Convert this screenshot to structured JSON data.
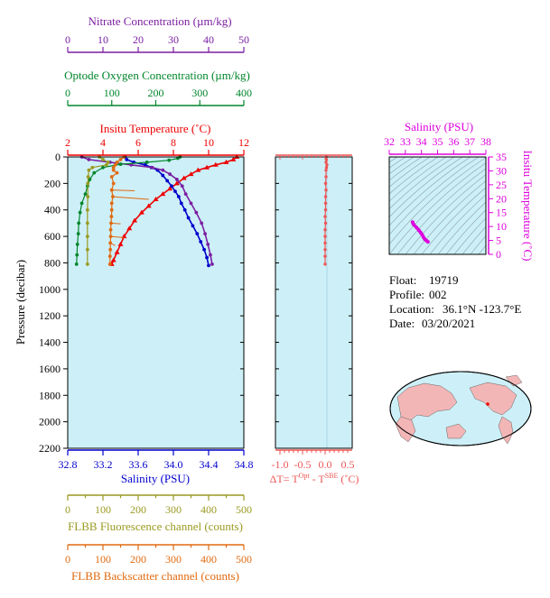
{
  "colors": {
    "nitrate": "#7b1fa2",
    "oxygen": "#00862b",
    "temperature": "#ee0000",
    "salinity": "#0000cc",
    "fluorescence": "#9a9a22",
    "backscatter": "#e06a10",
    "delta_t": "#ee5555",
    "ts": "#dd00dd",
    "plot_bg": "#cdeff7"
  },
  "info": {
    "float_label": "Float:",
    "float_value": "19719",
    "profile_label": "Profile:",
    "profile_value": "002",
    "location_label": "Location:",
    "location_value": "36.1°N  -123.7°E",
    "date_label": "Date:",
    "date_value": "03/20/2021"
  },
  "chart_data": [
    {
      "type": "line",
      "panel": "profiles",
      "y_axis": {
        "label": "Pressure (decibar)",
        "range": [
          0,
          2200
        ],
        "reversed": true,
        "ticks": [
          0,
          200,
          400,
          600,
          800,
          1000,
          1200,
          1400,
          1600,
          1800,
          2000,
          2200
        ]
      },
      "axes": {
        "nitrate": {
          "label": "Nitrate Concentration (µm/kg)",
          "range": [
            0,
            50
          ],
          "ticks": [
            0,
            10,
            20,
            30,
            40,
            50
          ],
          "tick_labels": [
            "0",
            "10",
            "20",
            "30",
            "40",
            "50"
          ]
        },
        "oxygen": {
          "label": "Optode Oxygen Concentration (µm/kg)",
          "range": [
            0,
            400
          ],
          "ticks": [
            0,
            100,
            200,
            300,
            400
          ],
          "tick_labels": [
            "0",
            "100",
            "200",
            "300",
            "400"
          ]
        },
        "temperature": {
          "label": "Insitu Temperature (˚C)",
          "range": [
            2,
            12
          ],
          "ticks": [
            2,
            4,
            6,
            8,
            10,
            12
          ],
          "tick_labels": [
            "2",
            "4",
            "6",
            "8",
            "10",
            "12"
          ]
        },
        "salinity": {
          "label": "Salinity (PSU)",
          "range": [
            32.8,
            34.8
          ],
          "ticks": [
            32.8,
            33.2,
            33.6,
            34.0,
            34.4,
            34.8
          ],
          "tick_labels": [
            "32.8",
            "33.2",
            "33.6",
            "34.0",
            "34.4",
            "34.8"
          ]
        },
        "fluorescence": {
          "label": "FLBB Fluorescence channel (counts)",
          "range": [
            0,
            500
          ],
          "ticks": [
            0,
            50,
            100,
            150,
            200,
            250,
            300,
            350,
            400,
            450,
            500
          ],
          "tick_labels": [
            "0",
            "100",
            "200",
            "300",
            "400",
            "500"
          ],
          "labeled_ticks": [
            0,
            100,
            200,
            300,
            400,
            500
          ]
        },
        "backscatter": {
          "label": "FLBB Backscatter channel (counts)",
          "range": [
            0,
            500
          ],
          "ticks": [
            0,
            50,
            100,
            150,
            200,
            250,
            300,
            350,
            400,
            450,
            500
          ],
          "tick_labels": [
            "0",
            "100",
            "200",
            "300",
            "400",
            "500"
          ],
          "labeled_ticks": [
            0,
            100,
            200,
            300,
            400,
            500
          ]
        }
      },
      "series": [
        {
          "name": "Insitu Temperature",
          "axis": "temperature",
          "marker": "triangle",
          "points": [
            [
              11.6,
              0
            ],
            [
              11.4,
              20
            ],
            [
              11.0,
              40
            ],
            [
              10.4,
              60
            ],
            [
              9.9,
              80
            ],
            [
              9.4,
              100
            ],
            [
              9.0,
              130
            ],
            [
              8.6,
              160
            ],
            [
              8.2,
              200
            ],
            [
              7.8,
              240
            ],
            [
              7.4,
              280
            ],
            [
              7.0,
              320
            ],
            [
              6.6,
              370
            ],
            [
              6.2,
              420
            ],
            [
              5.8,
              480
            ],
            [
              5.5,
              540
            ],
            [
              5.2,
              600
            ],
            [
              5.0,
              660
            ],
            [
              4.8,
              720
            ],
            [
              4.6,
              780
            ],
            [
              4.5,
              810
            ]
          ]
        },
        {
          "name": "Salinity",
          "axis": "salinity",
          "marker": "circle",
          "points": [
            [
              33.45,
              0
            ],
            [
              33.47,
              20
            ],
            [
              33.55,
              40
            ],
            [
              33.68,
              60
            ],
            [
              33.75,
              80
            ],
            [
              33.82,
              100
            ],
            [
              33.88,
              140
            ],
            [
              33.93,
              180
            ],
            [
              33.98,
              220
            ],
            [
              34.02,
              260
            ],
            [
              34.06,
              300
            ],
            [
              34.09,
              350
            ],
            [
              34.13,
              400
            ],
            [
              34.17,
              460
            ],
            [
              34.22,
              520
            ],
            [
              34.27,
              580
            ],
            [
              34.31,
              640
            ],
            [
              34.35,
              700
            ],
            [
              34.38,
              760
            ],
            [
              34.4,
              820
            ]
          ]
        },
        {
          "name": "Nitrate Concentration",
          "axis": "nitrate",
          "marker": "circle",
          "points": [
            [
              4,
              0
            ],
            [
              6,
              20
            ],
            [
              12,
              40
            ],
            [
              18,
              60
            ],
            [
              24,
              80
            ],
            [
              27,
              100
            ],
            [
              29,
              130
            ],
            [
              31,
              170
            ],
            [
              32.5,
              220
            ],
            [
              33.5,
              280
            ],
            [
              35,
              350
            ],
            [
              36.5,
              420
            ],
            [
              38,
              500
            ],
            [
              39,
              580
            ],
            [
              39.8,
              660
            ],
            [
              40.5,
              740
            ],
            [
              41,
              810
            ]
          ]
        },
        {
          "name": "Optode Oxygen Concentration",
          "axis": "oxygen",
          "marker": "circle",
          "points": [
            [
              255,
              0
            ],
            [
              250,
              10
            ],
            [
              230,
              25
            ],
            [
              180,
              40
            ],
            [
              120,
              55
            ],
            [
              80,
              80
            ],
            [
              60,
              120
            ],
            [
              50,
              170
            ],
            [
              45,
              220
            ],
            [
              40,
              280
            ],
            [
              32,
              350
            ],
            [
              28,
              420
            ],
            [
              25,
              500
            ],
            [
              24,
              580
            ],
            [
              22,
              660
            ],
            [
              21,
              740
            ],
            [
              20,
              810
            ]
          ]
        },
        {
          "name": "FLBB Fluorescence channel",
          "axis": "fluorescence",
          "marker": "circle",
          "points": [
            [
              90,
              0
            ],
            [
              100,
              20
            ],
            [
              115,
              40
            ],
            [
              110,
              60
            ],
            [
              70,
              80
            ],
            [
              60,
              100
            ],
            [
              58,
              150
            ],
            [
              57,
              200
            ],
            [
              57,
              300
            ],
            [
              56,
              400
            ],
            [
              56,
              500
            ],
            [
              56,
              600
            ],
            [
              56,
              700
            ],
            [
              56,
              810
            ]
          ]
        },
        {
          "name": "FLBB Backscatter channel",
          "axis": "backscatter",
          "marker": "circle",
          "points": [
            [
              160,
              0
            ],
            [
              150,
              20
            ],
            [
              140,
              40
            ],
            [
              135,
              60
            ],
            [
              130,
              80
            ],
            [
              130,
              100
            ],
            [
              140,
              120
            ],
            [
              125,
              150
            ],
            [
              130,
              200
            ],
            [
              125,
              250
            ],
            [
              128,
              300
            ],
            [
              125,
              350
            ],
            [
              125,
              400
            ],
            [
              124,
              450
            ],
            [
              123,
              500
            ],
            [
              122,
              550
            ],
            [
              122,
              600
            ],
            [
              121,
              650
            ],
            [
              121,
              700
            ],
            [
              120,
              750
            ],
            [
              120,
              810
            ]
          ],
          "spikes": [
            [
              128,
              300,
              230,
              320
            ],
            [
              125,
              250,
              190,
              255
            ],
            [
              123,
              500,
              150,
              505
            ],
            [
              122,
              600,
              160,
              610
            ],
            [
              121,
              650,
              135,
              670
            ]
          ]
        }
      ]
    },
    {
      "type": "scatter",
      "panel": "delta-t",
      "xlabel": "ΔT= T",
      "xlabel_sup1": "Opt",
      "xlabel_mid": " - T",
      "xlabel_sup2": "SBE",
      "xlabel_unit": " (˚C)",
      "xlim": [
        -1.1,
        0.6
      ],
      "ticks": [
        -1.0,
        -0.5,
        0.0,
        0.5
      ],
      "tick_labels": [
        "-1.0",
        "-0.5",
        "0.0",
        "0.5"
      ],
      "ylim": [
        0,
        2200
      ],
      "points": [
        [
          0.02,
          0
        ],
        [
          0.03,
          20
        ],
        [
          0.02,
          40
        ],
        [
          0.04,
          60
        ],
        [
          0.03,
          80
        ],
        [
          0.02,
          100
        ],
        [
          0.02,
          150
        ],
        [
          0.01,
          200
        ],
        [
          0.02,
          250
        ],
        [
          0.01,
          300
        ],
        [
          0.01,
          350
        ],
        [
          0.01,
          400
        ],
        [
          0.0,
          450
        ],
        [
          0.01,
          500
        ],
        [
          0.0,
          550
        ],
        [
          0.0,
          600
        ],
        [
          0.0,
          650
        ],
        [
          0.0,
          700
        ],
        [
          0.0,
          750
        ],
        [
          0.0,
          810
        ]
      ]
    },
    {
      "type": "line",
      "panel": "ts-diagram",
      "xlabel": "Salinity (PSU)",
      "ylabel": "Insitu Temperature (˚C)",
      "xlim": [
        32,
        38
      ],
      "ylim": [
        0,
        35
      ],
      "x_ticks": [
        32,
        33,
        34,
        35,
        36,
        37,
        38
      ],
      "x_tick_labels": [
        "32",
        "33",
        "34",
        "35",
        "36",
        "37",
        "38"
      ],
      "y_ticks": [
        0,
        5,
        10,
        15,
        20,
        25,
        30,
        35
      ],
      "y_tick_labels": [
        "0",
        "5",
        "10",
        "15",
        "20",
        "25",
        "30",
        "35"
      ],
      "points": [
        [
          33.45,
          11.6
        ],
        [
          33.5,
          10.8
        ],
        [
          33.7,
          9.6
        ],
        [
          33.85,
          8.6
        ],
        [
          33.95,
          7.8
        ],
        [
          34.05,
          7.0
        ],
        [
          34.12,
          6.2
        ],
        [
          34.2,
          5.5
        ],
        [
          34.3,
          5.0
        ],
        [
          34.4,
          4.5
        ]
      ]
    }
  ]
}
